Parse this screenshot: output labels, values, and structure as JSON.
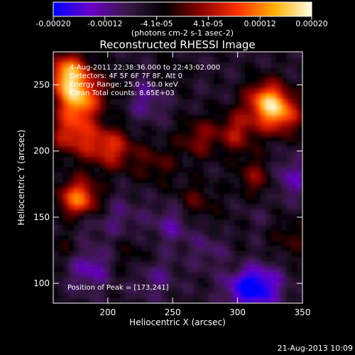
{
  "chart_data": {
    "type": "heatmap",
    "title": "Reconstructed RHESSI Image",
    "xlabel": "Heliocentric X (arcsec)",
    "ylabel": "Heliocentric Y (arcsec)",
    "xlim": [
      158,
      350
    ],
    "ylim": [
      85,
      275
    ],
    "xticks": [
      200,
      250,
      300,
      350
    ],
    "yticks": [
      100,
      150,
      200,
      250
    ],
    "colorbar": {
      "label": "(photons cm-2 s-1 asec-2)",
      "range": [
        -0.0002,
        0.0002
      ],
      "tick_labels": [
        "-0.00020",
        "-0.00012",
        "-4.1e-05",
        "4.1e-05",
        "0.00012",
        "0.00020"
      ],
      "colors": [
        "#0000ff",
        "#6a00c8",
        "#3a1848",
        "#000000",
        "#8a0000",
        "#ff3000",
        "#ffb000",
        "#ffffe8"
      ]
    },
    "annotations": [
      "4-Aug-2011 22:38:36.000 to 22:43:02.000",
      "Detectors: 4F 5F 6F 7F 8F, Att 0",
      "Energy Range: 25.0 - 50.0 keV",
      "Clean      Total counts: 8.65E+03"
    ],
    "peak_label": "Position of Peak = [173,241]",
    "peak": [
      173,
      241
    ],
    "sources": [
      {
        "x": 170,
        "y": 258,
        "value": 0.0002
      },
      {
        "x": 178,
        "y": 238,
        "value": 0.00018
      },
      {
        "x": 178,
        "y": 163,
        "value": 0.00019
      },
      {
        "x": 172,
        "y": 213,
        "value": 0.00012
      },
      {
        "x": 195,
        "y": 205,
        "value": 0.0001
      },
      {
        "x": 270,
        "y": 210,
        "value": 8e-05
      },
      {
        "x": 322,
        "y": 238,
        "value": 0.00016
      },
      {
        "x": 334,
        "y": 228,
        "value": 0.00014
      },
      {
        "x": 300,
        "y": 215,
        "value": 0.0001
      },
      {
        "x": 315,
        "y": 180,
        "value": 8e-05
      },
      {
        "x": 238,
        "y": 190,
        "value": 6e-05
      },
      {
        "x": 210,
        "y": 200,
        "value": 7e-05
      },
      {
        "x": 268,
        "y": 162,
        "value": 6e-05
      },
      {
        "x": 340,
        "y": 135,
        "value": 5e-05
      },
      {
        "x": 220,
        "y": 120,
        "value": 4e-05
      },
      {
        "x": 170,
        "y": 130,
        "value": 4e-05
      },
      {
        "x": 300,
        "y": 110,
        "value": 3e-05
      },
      {
        "x": 205,
        "y": 248,
        "value": 4e-05
      },
      {
        "x": 248,
        "y": 258,
        "value": 3e-05
      },
      {
        "x": 300,
        "y": 145,
        "value": 3e-05
      },
      {
        "x": 180,
        "y": 148,
        "value": -6e-05
      },
      {
        "x": 186,
        "y": 112,
        "value": -8e-05
      },
      {
        "x": 235,
        "y": 105,
        "value": -5e-05
      },
      {
        "x": 250,
        "y": 145,
        "value": -6e-05
      },
      {
        "x": 305,
        "y": 98,
        "value": -0.00012
      },
      {
        "x": 320,
        "y": 97,
        "value": -0.0001
      },
      {
        "x": 340,
        "y": 180,
        "value": -7e-05
      },
      {
        "x": 230,
        "y": 240,
        "value": -6e-05
      },
      {
        "x": 280,
        "y": 125,
        "value": -4e-05
      },
      {
        "x": 210,
        "y": 150,
        "value": -4e-05
      },
      {
        "x": 310,
        "y": 150,
        "value": -3e-05
      }
    ]
  },
  "footer": {
    "timestamp": "21-Aug-2013 10:09"
  }
}
